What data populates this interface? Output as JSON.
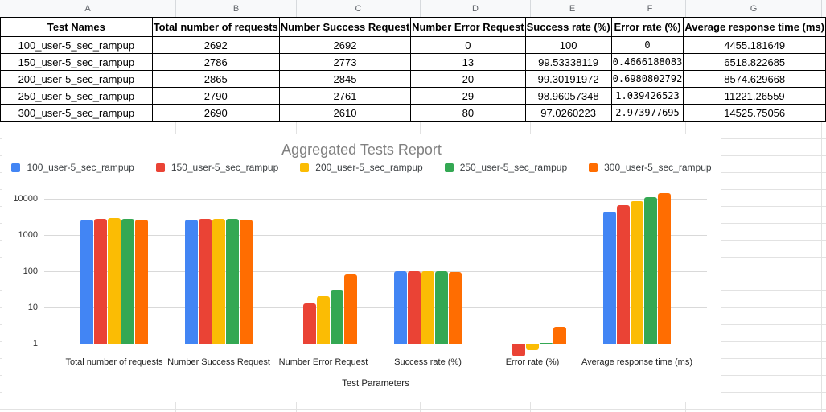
{
  "sheet": {
    "column_letters": [
      "A",
      "B",
      "C",
      "D",
      "E",
      "F",
      "G"
    ]
  },
  "table": {
    "headers": [
      "Test Names",
      "Total number of requests",
      "Number Success Request",
      "Number Error Request",
      "Success rate (%)",
      "Error rate (%)",
      "Average response time (ms)"
    ],
    "rows": [
      [
        "100_user-5_sec_rampup",
        "2692",
        "2692",
        "0",
        "100",
        "0",
        "4455.181649"
      ],
      [
        "150_user-5_sec_rampup",
        "2786",
        "2773",
        "13",
        "99.53338119",
        "0.4666188083",
        "6518.822685"
      ],
      [
        "200_user-5_sec_rampup",
        "2865",
        "2845",
        "20",
        "99.30191972",
        "0.6980802792",
        "8574.629668"
      ],
      [
        "250_user-5_sec_rampup",
        "2790",
        "2761",
        "29",
        "98.96057348",
        "1.039426523",
        "11221.26559"
      ],
      [
        "300_user-5_sec_rampup",
        "2690",
        "2610",
        "80",
        "97.0260223",
        "2.973977695",
        "14525.75056"
      ]
    ]
  },
  "chart_data": {
    "type": "bar",
    "title": "Aggregated Tests Report",
    "xlabel": "Test Parameters",
    "ylabel": "",
    "y_scale": "log",
    "y_ticks": [
      1,
      10,
      100,
      1000,
      10000
    ],
    "ylim": [
      1,
      10000
    ],
    "grid": true,
    "legend_position": "top",
    "categories": [
      "Total number of requests",
      "Number Success Request",
      "Number Error Request",
      "Success rate (%)",
      "Error rate (%)",
      "Average response time (ms)"
    ],
    "series": [
      {
        "name": "100_user-5_sec_rampup",
        "color": "#4285F4",
        "values": [
          2692,
          2692,
          0,
          100,
          0,
          4455.181649
        ]
      },
      {
        "name": "150_user-5_sec_rampup",
        "color": "#EA4335",
        "values": [
          2786,
          2773,
          13,
          99.53338119,
          0.4666188083,
          6518.822685
        ]
      },
      {
        "name": "200_user-5_sec_rampup",
        "color": "#FBBC04",
        "values": [
          2865,
          2845,
          20,
          99.30191972,
          0.6980802792,
          8574.629668
        ]
      },
      {
        "name": "250_user-5_sec_rampup",
        "color": "#34A853",
        "values": [
          2790,
          2761,
          29,
          98.96057348,
          1.039426523,
          11221.26559
        ]
      },
      {
        "name": "300_user-5_sec_rampup",
        "color": "#FF6D01",
        "values": [
          2690,
          2610,
          80,
          97.0260223,
          2.973977695,
          14525.75056
        ]
      }
    ]
  }
}
